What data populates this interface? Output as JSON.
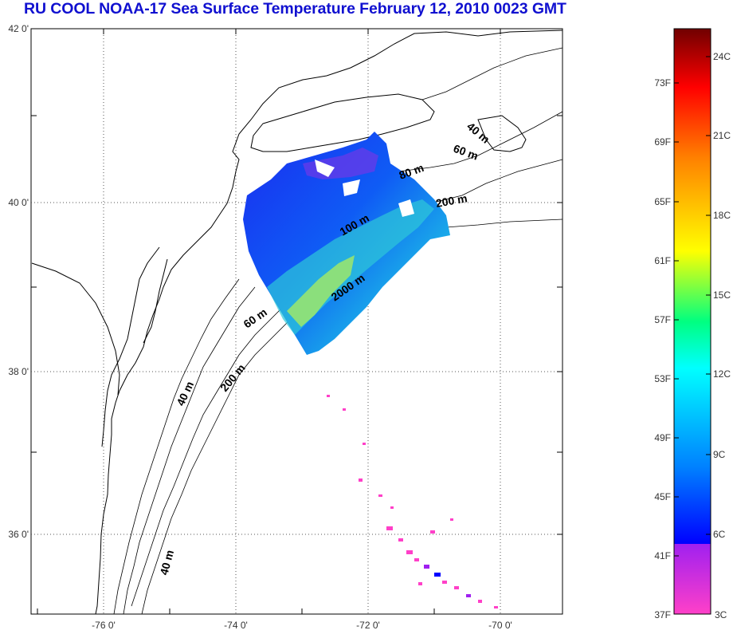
{
  "title": "RU COOL  NOAA-17 Sea Surface Temperature February 12, 2010 0023 GMT",
  "map": {
    "lon_range": [
      -77,
      -69
    ],
    "lat_range": [
      35,
      42
    ],
    "lat_ticks": [
      {
        "value": 42,
        "label": "42 0'"
      },
      {
        "value": 40,
        "label": "40 0'"
      },
      {
        "value": 38,
        "label": "38 0'"
      },
      {
        "value": 36,
        "label": "36 0'"
      }
    ],
    "lon_ticks": [
      {
        "value": -76,
        "label": "-76 0'"
      },
      {
        "value": -74,
        "label": "-74 0'"
      },
      {
        "value": -72,
        "label": "-72 0'"
      },
      {
        "value": -70,
        "label": "-70 0'"
      }
    ],
    "grid": "dotted",
    "contour_labels": [
      {
        "text": "40 m"
      },
      {
        "text": "60 m"
      },
      {
        "text": "80 m"
      },
      {
        "text": "200 m"
      },
      {
        "text": "100 m"
      },
      {
        "text": "2000 m"
      },
      {
        "text": "60 m"
      },
      {
        "text": "200 m"
      },
      {
        "text": "40 m"
      },
      {
        "text": "40 m"
      }
    ]
  },
  "colorbar": {
    "colors": [
      "#ff40c8",
      "#a020f0",
      "#0000ff",
      "#0080ff",
      "#00ffff",
      "#00ff80",
      "#ffff00",
      "#ff8000",
      "#ff0000",
      "#700000"
    ],
    "fahrenheit_labels": [
      "73F",
      "69F",
      "65F",
      "61F",
      "57F",
      "53F",
      "49F",
      "45F",
      "41F",
      "37F"
    ],
    "celsius_labels": [
      "24C",
      "21C",
      "18C",
      "15C",
      "12C",
      "9C",
      "6C",
      "3C"
    ]
  }
}
